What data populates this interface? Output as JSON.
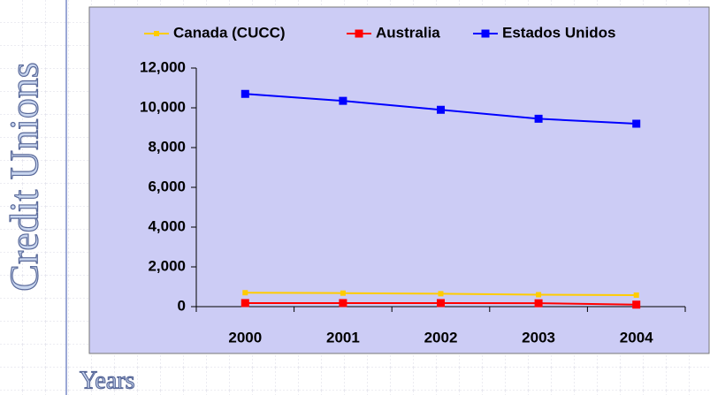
{
  "chart_data": {
    "type": "line",
    "y_label": "Credit Unions",
    "x_label": "Years",
    "categories": [
      "2000",
      "2001",
      "2002",
      "2003",
      "2004"
    ],
    "series": [
      {
        "name": "Canada (CUCC)",
        "color": "#ffcc00",
        "values": [
          700,
          680,
          650,
          600,
          580
        ]
      },
      {
        "name": "Australia",
        "color": "#ff0000",
        "values": [
          180,
          180,
          180,
          170,
          100
        ]
      },
      {
        "name": "Estados Unidos",
        "color": "#0000ff",
        "values": [
          10700,
          10350,
          9900,
          9450,
          9200
        ]
      }
    ],
    "ylim": [
      0,
      12000
    ],
    "yticks": [
      0,
      {
        "value": 2000,
        "label": "2,000"
      },
      {
        "value": 4000,
        "label": "4,000"
      },
      {
        "value": 6000,
        "label": "6,000"
      },
      {
        "value": 8000,
        "label": "8,000"
      },
      {
        "value": 10000,
        "label": "10,000"
      },
      {
        "value": 12000,
        "label": "12,000"
      }
    ],
    "legend": "top"
  }
}
